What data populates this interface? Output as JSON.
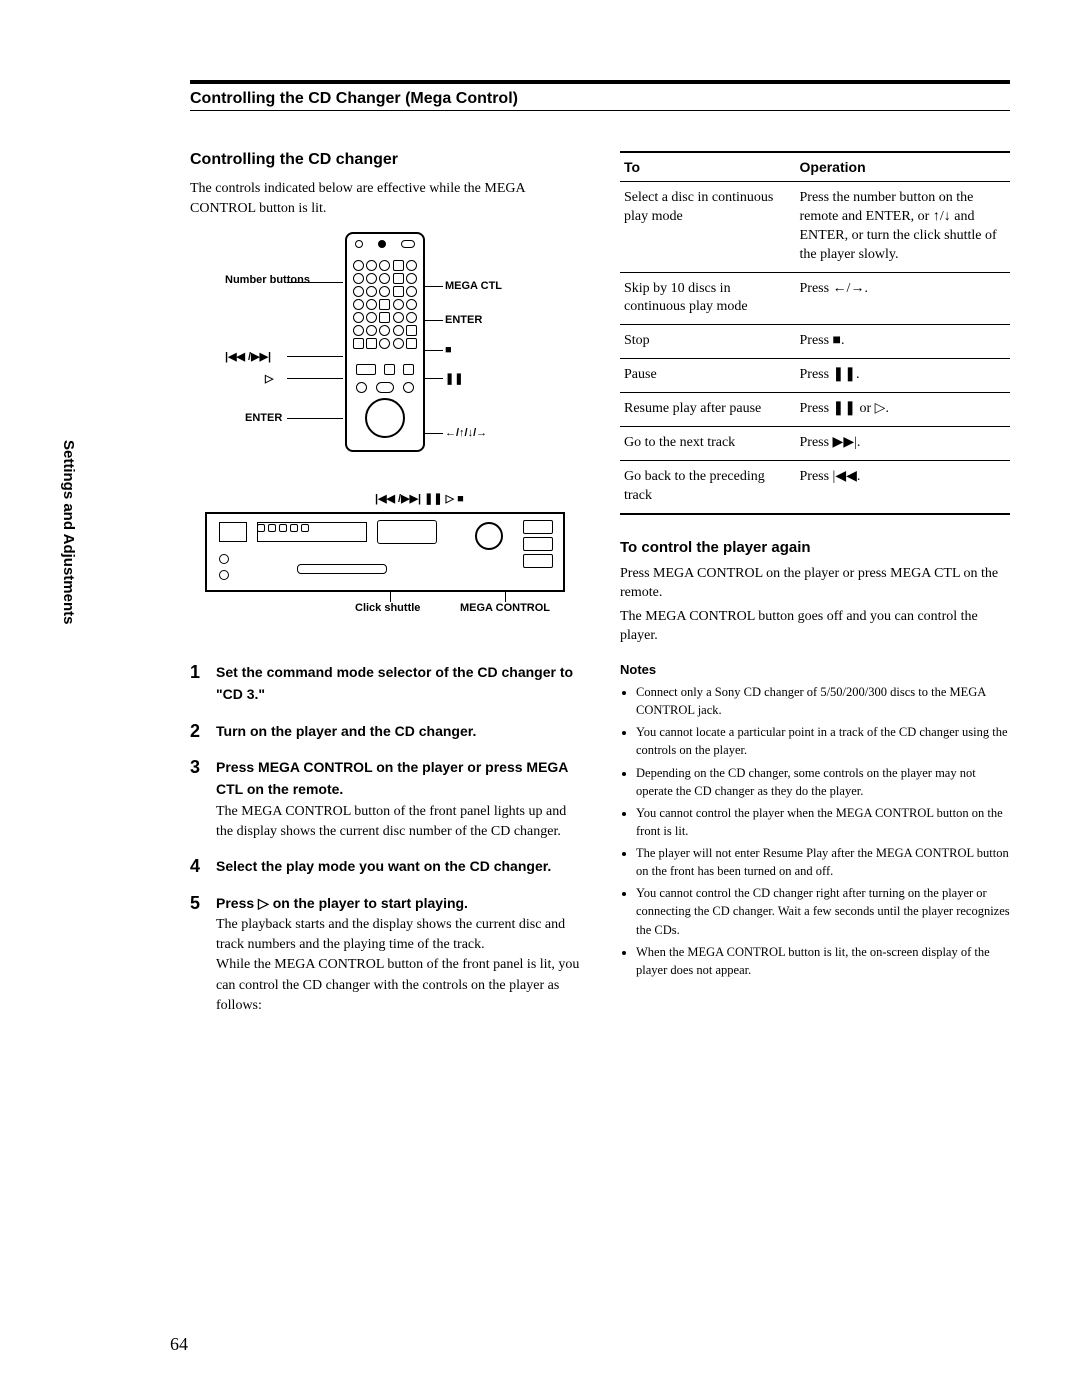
{
  "header": {
    "title": "Controlling the CD Changer  (Mega Control)"
  },
  "sidebar": "Settings and Adjustments",
  "left": {
    "section_title": "Controlling the CD changer",
    "intro": "The controls indicated below are effective while the MEGA CONTROL button is lit.",
    "remote_labels": {
      "number_buttons": "Number buttons",
      "prev_next": "|◀◀ /▶▶|",
      "play": "▷",
      "enter": "ENTER",
      "mega_ctl": "MEGA CTL",
      "enter_r": "ENTER",
      "stop": "■",
      "pause": "❚❚",
      "arrows": "←/↑/↓/→"
    },
    "player_labels": {
      "top_syms": "|◀◀ /▶▶|       ❚❚   ▷   ■",
      "click_shuttle": "Click shuttle",
      "mega_control": "MEGA CONTROL"
    },
    "steps": [
      {
        "n": "1",
        "title": "Set the command mode selector of the CD changer to \"CD 3.\"",
        "body": ""
      },
      {
        "n": "2",
        "title": "Turn on the player and the CD changer.",
        "body": ""
      },
      {
        "n": "3",
        "title": "Press MEGA CONTROL on the player or press MEGA CTL on the remote.",
        "body": "The MEGA CONTROL button of the front panel lights up and the display shows the current disc number of the CD changer."
      },
      {
        "n": "4",
        "title": "Select the play mode you want on the CD changer.",
        "body": ""
      },
      {
        "n": "5",
        "title": "Press ▷ on the player to start playing.",
        "body": "The playback starts and the display shows the current disc and track numbers and the playing time of the track.\nWhile the MEGA CONTROL button of the front panel is lit, you can control the CD changer with the controls on the player as follows:"
      }
    ]
  },
  "right": {
    "table": {
      "headers": [
        "To",
        "Operation"
      ],
      "rows": [
        [
          "Select a disc  in continuous play mode",
          "Press the number button on the remote and ENTER, or ↑/↓ and ENTER, or turn the click shuttle of the player slowly."
        ],
        [
          "Skip by 10 discs  in continuous play mode",
          "Press ←/→."
        ],
        [
          "Stop",
          "Press ■."
        ],
        [
          "Pause",
          "Press ❚❚."
        ],
        [
          "Resume play after pause",
          "Press ❚❚ or ▷."
        ],
        [
          "Go to the next track",
          "Press ▶▶|."
        ],
        [
          "Go back to the preceding track",
          "Press |◀◀."
        ]
      ]
    },
    "again_head": "To control the player again",
    "again_body1": "Press MEGA CONTROL on the player or press MEGA CTL on the remote.",
    "again_body2": "The MEGA CONTROL button goes off and you can control the player.",
    "notes_head": "Notes",
    "notes": [
      "Connect only a Sony CD changer of  5/50/200/300 discs to the MEGA CONTROL jack.",
      "You cannot locate a particular point in a track of the CD changer using the controls on the player.",
      "Depending on the CD changer, some controls on the player may not operate the CD changer as they do the player.",
      "You cannot control the player when the MEGA CONTROL button on the front is lit.",
      "The player will not enter Resume Play after the MEGA CONTROL button on the front has been turned on and off.",
      "You cannot control the CD changer right after turning on the player or connecting the CD changer.  Wait a few seconds until the player recognizes the CDs.",
      "When the MEGA CONTROL button is lit, the on-screen display of the player does not appear."
    ]
  },
  "page_number": "64"
}
